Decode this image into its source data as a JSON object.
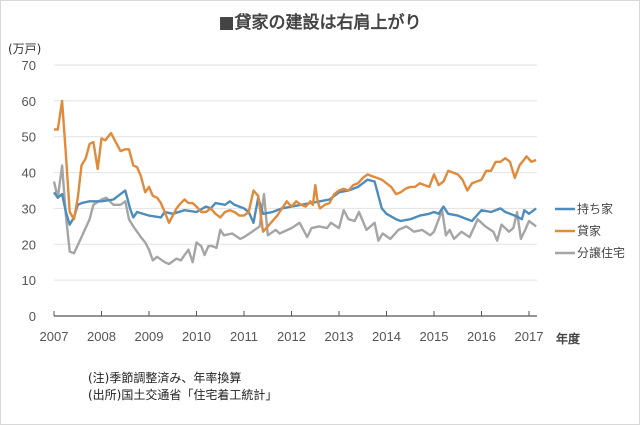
{
  "title": "■貸家の建設は右肩上がり",
  "notes": [
    "(注)季節調整済み、年率換算",
    "(出所)国土交通省「住宅着工統計」"
  ],
  "chart_data": {
    "type": "line",
    "title": "■貸家の建設は右肩上がり",
    "ylabel": "(万戸)",
    "xlabel": "年度",
    "ylim": [
      0,
      70
    ],
    "xlim": [
      2007,
      2017.2
    ],
    "yticks": [
      "0",
      "10",
      "20",
      "30",
      "40",
      "50",
      "60",
      "70"
    ],
    "xticks": [
      "2007",
      "2008",
      "2009",
      "2010",
      "2011",
      "2012",
      "2013",
      "2014",
      "2015",
      "2016",
      "2017"
    ],
    "grid": true,
    "legend": "right",
    "series": [
      {
        "name": "持ち家",
        "color": "#4e8dbb",
        "points": [
          [
            2007.0,
            34.5
          ],
          [
            2007.08,
            33
          ],
          [
            2007.17,
            34
          ],
          [
            2007.25,
            29
          ],
          [
            2007.33,
            25.5
          ],
          [
            2007.42,
            27.5
          ],
          [
            2007.5,
            31
          ],
          [
            2007.58,
            31.5
          ],
          [
            2007.75,
            32
          ],
          [
            2008.0,
            32
          ],
          [
            2008.25,
            32.5
          ],
          [
            2008.4,
            34
          ],
          [
            2008.5,
            35
          ],
          [
            2008.6,
            30
          ],
          [
            2008.67,
            27.5
          ],
          [
            2008.75,
            29
          ],
          [
            2009.0,
            28
          ],
          [
            2009.25,
            27.5
          ],
          [
            2009.33,
            29
          ],
          [
            2009.5,
            28.5
          ],
          [
            2009.75,
            29.5
          ],
          [
            2010.0,
            29
          ],
          [
            2010.2,
            30.5
          ],
          [
            2010.3,
            30
          ],
          [
            2010.4,
            31.5
          ],
          [
            2010.6,
            31
          ],
          [
            2010.7,
            32
          ],
          [
            2010.8,
            31
          ],
          [
            2011.0,
            30
          ],
          [
            2011.1,
            29
          ],
          [
            2011.2,
            26
          ],
          [
            2011.3,
            33
          ],
          [
            2011.4,
            28.5
          ],
          [
            2011.6,
            29
          ],
          [
            2011.8,
            30
          ],
          [
            2012.0,
            30.5
          ],
          [
            2012.2,
            31
          ],
          [
            2012.4,
            31.5
          ],
          [
            2012.6,
            32
          ],
          [
            2012.8,
            32.5
          ],
          [
            2013.0,
            34.5
          ],
          [
            2013.2,
            35
          ],
          [
            2013.4,
            36
          ],
          [
            2013.6,
            38
          ],
          [
            2013.75,
            37.5
          ],
          [
            2013.9,
            30
          ],
          [
            2014.0,
            28.5
          ],
          [
            2014.2,
            27
          ],
          [
            2014.3,
            26.5
          ],
          [
            2014.5,
            27
          ],
          [
            2014.7,
            28
          ],
          [
            2014.9,
            28.5
          ],
          [
            2015.0,
            29
          ],
          [
            2015.1,
            28.5
          ],
          [
            2015.2,
            30.5
          ],
          [
            2015.3,
            28.5
          ],
          [
            2015.5,
            28
          ],
          [
            2015.7,
            27
          ],
          [
            2015.8,
            26.5
          ],
          [
            2016.0,
            29.5
          ],
          [
            2016.2,
            29
          ],
          [
            2016.4,
            30
          ],
          [
            2016.5,
            29
          ],
          [
            2016.7,
            28
          ],
          [
            2016.85,
            27
          ],
          [
            2016.9,
            29.5
          ],
          [
            2017.0,
            28.5
          ],
          [
            2017.15,
            30
          ]
        ]
      },
      {
        "name": "貸家",
        "color": "#e08a3c",
        "points": [
          [
            2007.0,
            52
          ],
          [
            2007.08,
            52
          ],
          [
            2007.17,
            60
          ],
          [
            2007.25,
            45
          ],
          [
            2007.33,
            29
          ],
          [
            2007.42,
            27
          ],
          [
            2007.5,
            33
          ],
          [
            2007.58,
            42
          ],
          [
            2007.67,
            44
          ],
          [
            2007.75,
            48
          ],
          [
            2007.83,
            48.5
          ],
          [
            2007.92,
            41
          ],
          [
            2008.0,
            49.5
          ],
          [
            2008.08,
            49
          ],
          [
            2008.2,
            51
          ],
          [
            2008.3,
            48.5
          ],
          [
            2008.4,
            46
          ],
          [
            2008.5,
            46.5
          ],
          [
            2008.58,
            46.5
          ],
          [
            2008.67,
            42
          ],
          [
            2008.75,
            41.5
          ],
          [
            2008.83,
            39
          ],
          [
            2008.92,
            34.5
          ],
          [
            2009.0,
            36
          ],
          [
            2009.08,
            33.5
          ],
          [
            2009.17,
            33
          ],
          [
            2009.25,
            31.5
          ],
          [
            2009.33,
            29
          ],
          [
            2009.42,
            26
          ],
          [
            2009.5,
            28
          ],
          [
            2009.58,
            30
          ],
          [
            2009.67,
            31.5
          ],
          [
            2009.75,
            32.5
          ],
          [
            2009.83,
            31.5
          ],
          [
            2009.92,
            31.5
          ],
          [
            2010.0,
            30.5
          ],
          [
            2010.1,
            29
          ],
          [
            2010.2,
            29
          ],
          [
            2010.3,
            30
          ],
          [
            2010.4,
            28.5
          ],
          [
            2010.5,
            27.5
          ],
          [
            2010.6,
            29
          ],
          [
            2010.7,
            29.5
          ],
          [
            2010.8,
            29
          ],
          [
            2010.9,
            28
          ],
          [
            2011.0,
            28
          ],
          [
            2011.1,
            29
          ],
          [
            2011.2,
            35
          ],
          [
            2011.3,
            33.5
          ],
          [
            2011.4,
            23.5
          ],
          [
            2011.5,
            25
          ],
          [
            2011.6,
            26.5
          ],
          [
            2011.7,
            28
          ],
          [
            2011.8,
            30
          ],
          [
            2011.9,
            32
          ],
          [
            2012.0,
            30.5
          ],
          [
            2012.1,
            32
          ],
          [
            2012.2,
            31
          ],
          [
            2012.3,
            30.5
          ],
          [
            2012.4,
            32
          ],
          [
            2012.45,
            31
          ],
          [
            2012.5,
            36.5
          ],
          [
            2012.55,
            32
          ],
          [
            2012.6,
            30
          ],
          [
            2012.7,
            31
          ],
          [
            2012.8,
            31.5
          ],
          [
            2012.9,
            34
          ],
          [
            2013.0,
            35
          ],
          [
            2013.1,
            35.5
          ],
          [
            2013.2,
            35
          ],
          [
            2013.3,
            36.5
          ],
          [
            2013.4,
            37
          ],
          [
            2013.5,
            38.5
          ],
          [
            2013.6,
            39.5
          ],
          [
            2013.7,
            39
          ],
          [
            2013.8,
            38.5
          ],
          [
            2013.9,
            38
          ],
          [
            2014.0,
            37
          ],
          [
            2014.1,
            36
          ],
          [
            2014.2,
            34
          ],
          [
            2014.3,
            34.5
          ],
          [
            2014.4,
            35.5
          ],
          [
            2014.5,
            36
          ],
          [
            2014.6,
            36
          ],
          [
            2014.7,
            37
          ],
          [
            2014.8,
            36.5
          ],
          [
            2014.9,
            36
          ],
          [
            2015.0,
            39.5
          ],
          [
            2015.1,
            36.5
          ],
          [
            2015.2,
            37.5
          ],
          [
            2015.3,
            40.5
          ],
          [
            2015.4,
            40
          ],
          [
            2015.5,
            39.5
          ],
          [
            2015.6,
            38
          ],
          [
            2015.7,
            35
          ],
          [
            2015.8,
            37
          ],
          [
            2015.9,
            37.5
          ],
          [
            2016.0,
            38
          ],
          [
            2016.1,
            40.5
          ],
          [
            2016.2,
            40.5
          ],
          [
            2016.3,
            43
          ],
          [
            2016.4,
            43
          ],
          [
            2016.5,
            44
          ],
          [
            2016.6,
            43
          ],
          [
            2016.7,
            38.5
          ],
          [
            2016.8,
            42
          ],
          [
            2016.95,
            44.5
          ],
          [
            2017.05,
            43
          ],
          [
            2017.15,
            43.5
          ]
        ]
      },
      {
        "name": "分譲住宅",
        "color": "#a5a5a5",
        "points": [
          [
            2007.0,
            37.5
          ],
          [
            2007.08,
            33
          ],
          [
            2007.17,
            42
          ],
          [
            2007.25,
            28
          ],
          [
            2007.33,
            18
          ],
          [
            2007.42,
            17.5
          ],
          [
            2007.58,
            22
          ],
          [
            2007.75,
            27
          ],
          [
            2007.83,
            31
          ],
          [
            2008.0,
            32.5
          ],
          [
            2008.1,
            33
          ],
          [
            2008.25,
            31
          ],
          [
            2008.4,
            31
          ],
          [
            2008.5,
            32
          ],
          [
            2008.58,
            27
          ],
          [
            2008.67,
            25
          ],
          [
            2008.83,
            22
          ],
          [
            2008.92,
            20.5
          ],
          [
            2009.0,
            18.5
          ],
          [
            2009.08,
            15.5
          ],
          [
            2009.17,
            16.5
          ],
          [
            2009.33,
            15
          ],
          [
            2009.42,
            14.5
          ],
          [
            2009.58,
            16
          ],
          [
            2009.67,
            15.5
          ],
          [
            2009.83,
            18.5
          ],
          [
            2009.92,
            15
          ],
          [
            2010.0,
            20.5
          ],
          [
            2010.1,
            19.5
          ],
          [
            2010.17,
            17
          ],
          [
            2010.25,
            19.5
          ],
          [
            2010.33,
            19.5
          ],
          [
            2010.42,
            19
          ],
          [
            2010.5,
            24
          ],
          [
            2010.58,
            22.5
          ],
          [
            2010.75,
            23
          ],
          [
            2010.92,
            21.5
          ],
          [
            2011.0,
            22
          ],
          [
            2011.17,
            23.5
          ],
          [
            2011.33,
            25
          ],
          [
            2011.42,
            34
          ],
          [
            2011.5,
            22.5
          ],
          [
            2011.67,
            24
          ],
          [
            2011.75,
            23
          ],
          [
            2012.0,
            24.5
          ],
          [
            2012.17,
            26
          ],
          [
            2012.33,
            22
          ],
          [
            2012.42,
            24.5
          ],
          [
            2012.58,
            25
          ],
          [
            2012.75,
            24.5
          ],
          [
            2012.83,
            26
          ],
          [
            2013.0,
            24.5
          ],
          [
            2013.1,
            29.5
          ],
          [
            2013.2,
            27
          ],
          [
            2013.33,
            26.5
          ],
          [
            2013.42,
            29
          ],
          [
            2013.58,
            24
          ],
          [
            2013.75,
            26
          ],
          [
            2013.83,
            21
          ],
          [
            2013.92,
            23
          ],
          [
            2014.08,
            21.5
          ],
          [
            2014.25,
            24
          ],
          [
            2014.42,
            25
          ],
          [
            2014.58,
            23.5
          ],
          [
            2014.75,
            24
          ],
          [
            2014.92,
            22.5
          ],
          [
            2015.0,
            23.5
          ],
          [
            2015.17,
            29.5
          ],
          [
            2015.25,
            22.5
          ],
          [
            2015.33,
            24
          ],
          [
            2015.42,
            21.5
          ],
          [
            2015.58,
            23.5
          ],
          [
            2015.75,
            22
          ],
          [
            2015.92,
            27
          ],
          [
            2016.08,
            25
          ],
          [
            2016.25,
            23.5
          ],
          [
            2016.33,
            21
          ],
          [
            2016.42,
            25.5
          ],
          [
            2016.58,
            23.5
          ],
          [
            2016.67,
            24.5
          ],
          [
            2016.75,
            29
          ],
          [
            2016.83,
            21.5
          ],
          [
            2016.92,
            24
          ],
          [
            2017.0,
            26.5
          ],
          [
            2017.15,
            25
          ]
        ]
      }
    ]
  }
}
